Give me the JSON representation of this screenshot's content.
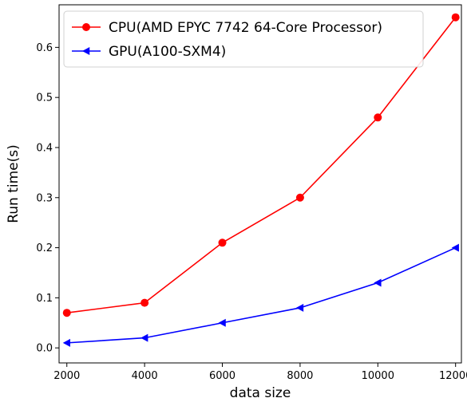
{
  "chart_data": {
    "type": "line",
    "title": "",
    "xlabel": "data size",
    "ylabel": "Run time(s)",
    "x": [
      2000,
      4000,
      6000,
      8000,
      10000,
      12000
    ],
    "xlim": [
      1800,
      12150
    ],
    "ylim": [
      -0.03,
      0.685
    ],
    "xticks": [
      2000,
      4000,
      6000,
      8000,
      10000,
      12000
    ],
    "yticks": [
      0.0,
      0.1,
      0.2,
      0.3,
      0.4,
      0.5,
      0.6
    ],
    "xtick_labels": [
      "2000",
      "4000",
      "6000",
      "8000",
      "10000",
      "12000"
    ],
    "ytick_labels": [
      "0.0",
      "0.1",
      "0.2",
      "0.3",
      "0.4",
      "0.5",
      "0.6"
    ],
    "grid": false,
    "legend_position": "top-left",
    "series": [
      {
        "name": "CPU(AMD EPYC 7742 64-Core Processor)",
        "values": [
          0.07,
          0.09,
          0.21,
          0.3,
          0.46,
          0.66
        ],
        "color": "#ff0000",
        "marker": "circle"
      },
      {
        "name": "GPU(A100-SXM4)",
        "values": [
          0.01,
          0.02,
          0.05,
          0.08,
          0.13,
          0.2
        ],
        "color": "#0000ff",
        "marker": "triangle-left"
      }
    ]
  }
}
